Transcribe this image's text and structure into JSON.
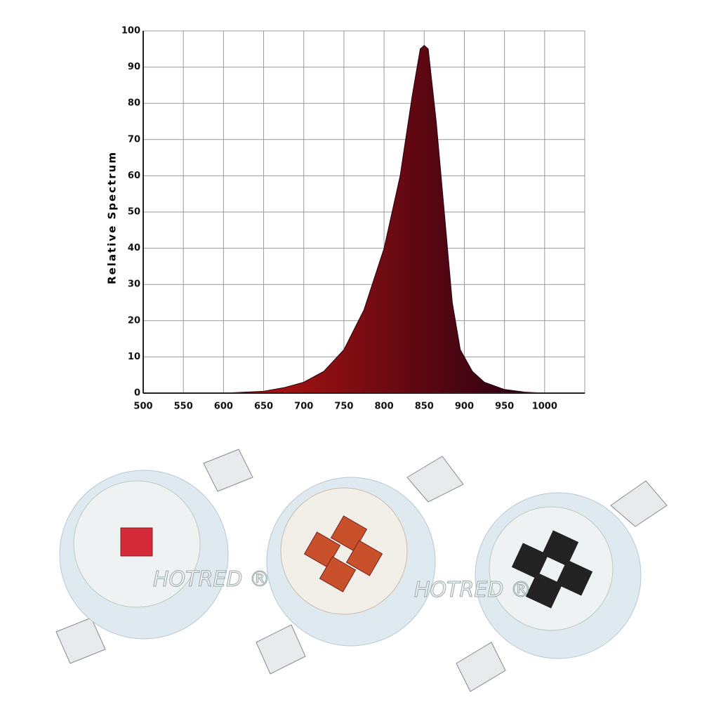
{
  "chart_data": {
    "type": "area",
    "y_label": "Relative Spectrum",
    "x": [
      500,
      600,
      650,
      675,
      700,
      725,
      750,
      775,
      800,
      820,
      835,
      845,
      850,
      855,
      865,
      875,
      885,
      895,
      910,
      925,
      950,
      975,
      1000
    ],
    "values": [
      0,
      0,
      0.5,
      1.5,
      3,
      6,
      12,
      23,
      40,
      60,
      82,
      95,
      96,
      95,
      75,
      50,
      25,
      12,
      6,
      3,
      1,
      0.3,
      0
    ],
    "gradient": [
      "#a01212",
      "#2a0012"
    ],
    "xlim": [
      500,
      1050
    ],
    "ylim": [
      0,
      100
    ],
    "xticks": [
      500,
      550,
      600,
      650,
      700,
      750,
      800,
      850,
      900,
      950,
      1000
    ],
    "yticks": [
      0,
      10,
      20,
      30,
      40,
      50,
      60,
      70,
      80,
      90,
      100
    ],
    "grid": true
  },
  "watermarks": [
    "HOTRED ®",
    "HOTRED ®"
  ]
}
